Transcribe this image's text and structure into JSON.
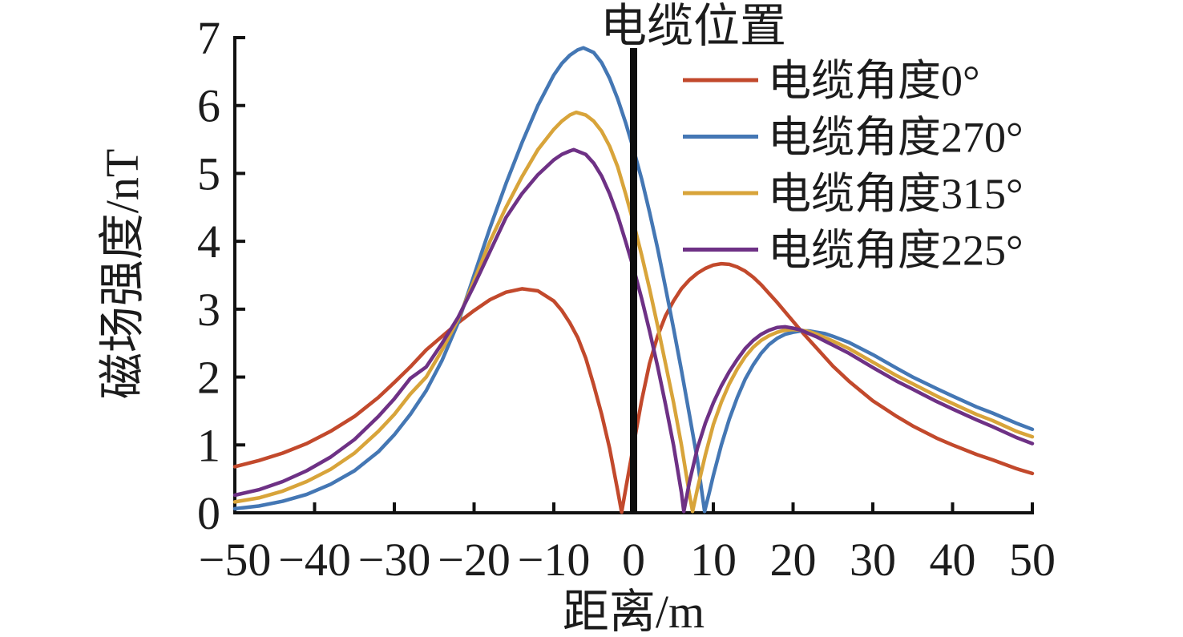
{
  "chart_data": {
    "type": "line",
    "annotation_title": "电缆位置",
    "xlabel": "距离/m",
    "ylabel": "磁场强度/nT",
    "xlim": [
      -50,
      50
    ],
    "ylim": [
      0,
      7
    ],
    "xticks": [
      -50,
      -40,
      -30,
      -20,
      -10,
      0,
      10,
      20,
      30,
      40,
      50
    ],
    "yticks": [
      0,
      1,
      2,
      3,
      4,
      5,
      6,
      7
    ],
    "grid": false,
    "legend_position": "upper-right-no-frame",
    "cable_line": {
      "x": 0,
      "color": "#0d0d0d"
    },
    "series": [
      {
        "name": "电缆角度0°",
        "color": "#c2492c",
        "points": [
          [
            -50,
            0.68
          ],
          [
            -47,
            0.77
          ],
          [
            -44,
            0.88
          ],
          [
            -41,
            1.02
          ],
          [
            -38,
            1.2
          ],
          [
            -35,
            1.42
          ],
          [
            -32,
            1.7
          ],
          [
            -30,
            1.92
          ],
          [
            -28,
            2.15
          ],
          [
            -26,
            2.4
          ],
          [
            -24,
            2.6
          ],
          [
            -22,
            2.8
          ],
          [
            -20,
            2.98
          ],
          [
            -18,
            3.14
          ],
          [
            -16,
            3.25
          ],
          [
            -14,
            3.3
          ],
          [
            -12,
            3.27
          ],
          [
            -10,
            3.12
          ],
          [
            -9,
            2.98
          ],
          [
            -8,
            2.8
          ],
          [
            -7,
            2.58
          ],
          [
            -6,
            2.28
          ],
          [
            -5,
            1.88
          ],
          [
            -4,
            1.45
          ],
          [
            -3,
            0.95
          ],
          [
            -2,
            0.33
          ],
          [
            -1.5,
            0.01
          ],
          [
            -1,
            0.34
          ],
          [
            0,
            1.0
          ],
          [
            1,
            1.65
          ],
          [
            2,
            2.2
          ],
          [
            3,
            2.6
          ],
          [
            4,
            2.9
          ],
          [
            5,
            3.12
          ],
          [
            6,
            3.3
          ],
          [
            7,
            3.43
          ],
          [
            8,
            3.53
          ],
          [
            9,
            3.6
          ],
          [
            10,
            3.65
          ],
          [
            11,
            3.67
          ],
          [
            12,
            3.66
          ],
          [
            13,
            3.62
          ],
          [
            14,
            3.56
          ],
          [
            15,
            3.47
          ],
          [
            16,
            3.36
          ],
          [
            17,
            3.23
          ],
          [
            18,
            3.1
          ],
          [
            19,
            2.96
          ],
          [
            20,
            2.82
          ],
          [
            21,
            2.68
          ],
          [
            22,
            2.55
          ],
          [
            23,
            2.42
          ],
          [
            25,
            2.16
          ],
          [
            27,
            1.94
          ],
          [
            30,
            1.65
          ],
          [
            33,
            1.42
          ],
          [
            35,
            1.28
          ],
          [
            38,
            1.1
          ],
          [
            40,
            1.0
          ],
          [
            43,
            0.86
          ],
          [
            45,
            0.78
          ],
          [
            48,
            0.65
          ],
          [
            50,
            0.58
          ]
        ]
      },
      {
        "name": "电缆角度270°",
        "color": "#4477b4",
        "points": [
          [
            -50,
            0.06
          ],
          [
            -47,
            0.1
          ],
          [
            -44,
            0.17
          ],
          [
            -41,
            0.27
          ],
          [
            -38,
            0.42
          ],
          [
            -35,
            0.62
          ],
          [
            -32,
            0.9
          ],
          [
            -30,
            1.15
          ],
          [
            -28,
            1.45
          ],
          [
            -26,
            1.8
          ],
          [
            -24,
            2.25
          ],
          [
            -22,
            2.8
          ],
          [
            -20,
            3.5
          ],
          [
            -18,
            4.2
          ],
          [
            -16,
            4.85
          ],
          [
            -14,
            5.45
          ],
          [
            -12,
            6.0
          ],
          [
            -10,
            6.45
          ],
          [
            -9,
            6.62
          ],
          [
            -8,
            6.74
          ],
          [
            -7,
            6.82
          ],
          [
            -6.3,
            6.85
          ],
          [
            -5,
            6.78
          ],
          [
            -4,
            6.63
          ],
          [
            -3,
            6.4
          ],
          [
            -2,
            6.1
          ],
          [
            -1,
            5.75
          ],
          [
            0,
            5.35
          ],
          [
            1,
            4.92
          ],
          [
            2,
            4.43
          ],
          [
            3,
            3.9
          ],
          [
            4,
            3.32
          ],
          [
            5,
            2.72
          ],
          [
            6,
            2.1
          ],
          [
            7,
            1.45
          ],
          [
            8,
            0.78
          ],
          [
            8.9,
            0.02
          ],
          [
            9.5,
            0.3
          ],
          [
            10,
            0.55
          ],
          [
            11,
            1.0
          ],
          [
            12,
            1.38
          ],
          [
            13,
            1.7
          ],
          [
            14,
            1.97
          ],
          [
            15,
            2.18
          ],
          [
            16,
            2.35
          ],
          [
            17,
            2.48
          ],
          [
            18,
            2.57
          ],
          [
            19,
            2.63
          ],
          [
            20,
            2.66
          ],
          [
            21,
            2.68
          ],
          [
            22,
            2.68
          ],
          [
            23,
            2.66
          ],
          [
            24,
            2.64
          ],
          [
            25,
            2.6
          ],
          [
            27,
            2.51
          ],
          [
            30,
            2.33
          ],
          [
            33,
            2.13
          ],
          [
            35,
            2.0
          ],
          [
            38,
            1.83
          ],
          [
            40,
            1.72
          ],
          [
            43,
            1.56
          ],
          [
            45,
            1.47
          ],
          [
            48,
            1.32
          ],
          [
            50,
            1.23
          ]
        ]
      },
      {
        "name": "电缆角度315°",
        "color": "#d8a43a",
        "points": [
          [
            -50,
            0.16
          ],
          [
            -47,
            0.22
          ],
          [
            -44,
            0.32
          ],
          [
            -41,
            0.46
          ],
          [
            -38,
            0.64
          ],
          [
            -35,
            0.88
          ],
          [
            -32,
            1.2
          ],
          [
            -30,
            1.45
          ],
          [
            -28,
            1.75
          ],
          [
            -26,
            2.0
          ],
          [
            -24,
            2.4
          ],
          [
            -22,
            2.85
          ],
          [
            -20,
            3.42
          ],
          [
            -18,
            4.0
          ],
          [
            -16,
            4.5
          ],
          [
            -14,
            4.95
          ],
          [
            -12,
            5.35
          ],
          [
            -10,
            5.65
          ],
          [
            -9,
            5.77
          ],
          [
            -8,
            5.86
          ],
          [
            -7.2,
            5.9
          ],
          [
            -6,
            5.86
          ],
          [
            -5,
            5.77
          ],
          [
            -4,
            5.62
          ],
          [
            -3,
            5.4
          ],
          [
            -2,
            5.1
          ],
          [
            -1,
            4.7
          ],
          [
            0,
            4.27
          ],
          [
            1,
            3.8
          ],
          [
            2,
            3.3
          ],
          [
            3,
            2.76
          ],
          [
            4,
            2.2
          ],
          [
            5,
            1.63
          ],
          [
            6,
            1.0
          ],
          [
            7,
            0.28
          ],
          [
            7.4,
            0.02
          ],
          [
            8,
            0.35
          ],
          [
            9,
            0.85
          ],
          [
            10,
            1.3
          ],
          [
            11,
            1.63
          ],
          [
            12,
            1.9
          ],
          [
            13,
            2.12
          ],
          [
            14,
            2.3
          ],
          [
            15,
            2.44
          ],
          [
            16,
            2.54
          ],
          [
            17,
            2.61
          ],
          [
            18,
            2.66
          ],
          [
            19,
            2.69
          ],
          [
            20,
            2.7
          ],
          [
            21,
            2.69
          ],
          [
            22,
            2.67
          ],
          [
            23,
            2.63
          ],
          [
            24,
            2.58
          ],
          [
            25,
            2.53
          ],
          [
            27,
            2.42
          ],
          [
            30,
            2.22
          ],
          [
            33,
            2.02
          ],
          [
            35,
            1.9
          ],
          [
            38,
            1.72
          ],
          [
            40,
            1.61
          ],
          [
            43,
            1.45
          ],
          [
            45,
            1.36
          ],
          [
            48,
            1.2
          ],
          [
            50,
            1.12
          ]
        ]
      },
      {
        "name": "电缆角度225°",
        "color": "#6e3185",
        "points": [
          [
            -50,
            0.26
          ],
          [
            -47,
            0.34
          ],
          [
            -44,
            0.46
          ],
          [
            -41,
            0.62
          ],
          [
            -38,
            0.82
          ],
          [
            -35,
            1.08
          ],
          [
            -32,
            1.42
          ],
          [
            -30,
            1.68
          ],
          [
            -28,
            1.98
          ],
          [
            -26,
            2.15
          ],
          [
            -24,
            2.5
          ],
          [
            -22,
            2.88
          ],
          [
            -20,
            3.35
          ],
          [
            -18,
            3.85
          ],
          [
            -16,
            4.35
          ],
          [
            -14,
            4.7
          ],
          [
            -12,
            4.98
          ],
          [
            -10,
            5.2
          ],
          [
            -9,
            5.28
          ],
          [
            -8,
            5.33
          ],
          [
            -7.5,
            5.35
          ],
          [
            -6,
            5.28
          ],
          [
            -5,
            5.15
          ],
          [
            -4,
            4.96
          ],
          [
            -3,
            4.7
          ],
          [
            -2,
            4.38
          ],
          [
            -1,
            4.0
          ],
          [
            0,
            3.6
          ],
          [
            1,
            3.16
          ],
          [
            2,
            2.68
          ],
          [
            3,
            2.16
          ],
          [
            4,
            1.6
          ],
          [
            5,
            1.0
          ],
          [
            6,
            0.3
          ],
          [
            6.3,
            0.02
          ],
          [
            7,
            0.45
          ],
          [
            8,
            0.95
          ],
          [
            9,
            1.32
          ],
          [
            10,
            1.62
          ],
          [
            11,
            1.87
          ],
          [
            12,
            2.08
          ],
          [
            13,
            2.26
          ],
          [
            14,
            2.42
          ],
          [
            15,
            2.54
          ],
          [
            16,
            2.63
          ],
          [
            17,
            2.69
          ],
          [
            18,
            2.73
          ],
          [
            19,
            2.74
          ],
          [
            20,
            2.72
          ],
          [
            21,
            2.69
          ],
          [
            22,
            2.64
          ],
          [
            23,
            2.59
          ],
          [
            24,
            2.53
          ],
          [
            25,
            2.47
          ],
          [
            27,
            2.35
          ],
          [
            30,
            2.14
          ],
          [
            33,
            1.94
          ],
          [
            35,
            1.82
          ],
          [
            38,
            1.64
          ],
          [
            40,
            1.53
          ],
          [
            43,
            1.37
          ],
          [
            45,
            1.27
          ],
          [
            48,
            1.11
          ],
          [
            50,
            1.02
          ]
        ]
      }
    ]
  },
  "style": {
    "axis_color": "#111111",
    "text_color": "#1c1c1c",
    "curve_width": 4.5,
    "axis_width": 4,
    "cable_line_width": 9
  }
}
